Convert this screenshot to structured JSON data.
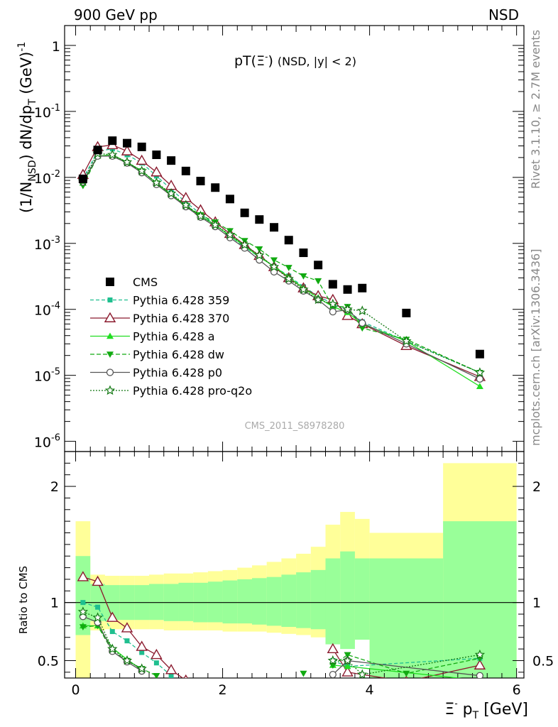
{
  "header": {
    "left": "900 GeV pp",
    "right": "NSD"
  },
  "side": {
    "rivet": "Rivet 3.1.10, ≥ 2.7M events",
    "source": "mcplots.cern.ch [arXiv:1306.3436]"
  },
  "colors": {
    "cms": "#000000",
    "p359": "#1fbf8f",
    "p370": "#8b1a2e",
    "pa": "#22dd22",
    "pdw": "#11aa11",
    "pp0": "#555555",
    "pq2o": "#117711",
    "band_yellow": "#ffff99",
    "band_green": "#99ff99"
  },
  "chart_data": [
    {
      "type": "scatter",
      "title_main": "pT(Ξ",
      "title_sup": "-",
      "title_end": ")",
      "title_cond": "(NSD, |y| < 2)",
      "ylabel": "(1/N",
      "ylabel_sub": "NSD",
      "ylabel_mid": ") dN/dp",
      "ylabel_sub2": "T",
      "ylabel_unit": "(GeV)",
      "ylabel_sup": "-1",
      "ylog": true,
      "ylim": [
        7e-07,
        2
      ],
      "xlim": [
        -0.15,
        6.1
      ],
      "yticks": [
        "10",
        "10",
        "10",
        "10",
        "10",
        "10",
        "1"
      ],
      "ytick_exps": [
        "-6",
        "-5",
        "-4",
        "-3",
        "-2",
        "-1",
        ""
      ],
      "watermark": "CMS_2011_S8978280",
      "legend_placement": "lower-left",
      "series": [
        {
          "name": "CMS",
          "key": "cms",
          "x": [
            0.1,
            0.3,
            0.5,
            0.7,
            0.9,
            1.1,
            1.3,
            1.5,
            1.7,
            1.9,
            2.1,
            2.3,
            2.5,
            2.7,
            2.9,
            3.1,
            3.3,
            3.5,
            3.7,
            3.9,
            4.5,
            5.5
          ],
          "y": [
            0.0095,
            0.026,
            0.036,
            0.033,
            0.029,
            0.022,
            0.018,
            0.0125,
            0.0088,
            0.007,
            0.0047,
            0.0029,
            0.0023,
            0.00175,
            0.00112,
            0.00072,
            0.00047,
            0.00024,
            0.0002,
            0.00021,
            8.8e-05,
            2.1e-05
          ]
        },
        {
          "name": "Pythia 6.428 359",
          "key": "p359",
          "x": [
            0.1,
            0.3,
            0.5,
            0.7,
            0.9,
            1.1,
            1.3,
            1.5,
            1.7,
            1.9,
            2.1,
            2.3,
            2.5,
            2.7,
            2.9,
            3.1,
            3.3,
            3.5,
            3.7,
            3.9,
            4.5,
            5.5
          ],
          "y": [
            0.0095,
            0.025,
            0.027,
            0.022,
            0.0165,
            0.0105,
            0.0066,
            0.0042,
            0.0028,
            0.0019,
            0.0013,
            0.00088,
            0.00062,
            0.00045,
            0.00032,
            0.00022,
            0.00016,
            0.00012,
            9.5e-05,
            6.5e-05,
            3.3e-05,
            1.1e-05
          ]
        },
        {
          "name": "Pythia 6.428 370",
          "key": "p370",
          "x": [
            0.1,
            0.3,
            0.5,
            0.7,
            0.9,
            1.1,
            1.3,
            1.5,
            1.7,
            1.9,
            2.1,
            2.3,
            2.5,
            2.7,
            2.9,
            3.1,
            3.3,
            3.5,
            3.7,
            3.9,
            4.5,
            5.5
          ],
          "y": [
            0.011,
            0.029,
            0.031,
            0.025,
            0.018,
            0.012,
            0.0075,
            0.0049,
            0.0032,
            0.0021,
            0.0014,
            0.00095,
            0.00065,
            0.00044,
            0.0003,
            0.00021,
            0.00016,
            0.00014,
            8e-05,
            6e-05,
            2.8e-05,
            9.5e-06
          ]
        },
        {
          "name": "Pythia 6.428 a",
          "key": "pa",
          "x": [
            0.1,
            0.3,
            0.5,
            0.7,
            0.9,
            1.1,
            1.3,
            1.5,
            1.7,
            1.9,
            2.1,
            2.3,
            2.5,
            2.7,
            2.9,
            3.1,
            3.3,
            3.5,
            3.7,
            3.9,
            4.5,
            5.5
          ],
          "y": [
            0.0082,
            0.021,
            0.022,
            0.017,
            0.0125,
            0.0082,
            0.0055,
            0.0037,
            0.0026,
            0.0019,
            0.0013,
            0.00092,
            0.00062,
            0.00045,
            0.00031,
            0.00021,
            0.00015,
            0.00011,
            9e-05,
            6e-05,
            3.3e-05,
            6.8e-06
          ]
        },
        {
          "name": "Pythia 6.428 dw",
          "key": "pdw",
          "x": [
            0.1,
            0.3,
            0.5,
            0.7,
            0.9,
            1.1,
            1.3,
            1.5,
            1.7,
            1.9,
            2.1,
            2.3,
            2.5,
            2.7,
            2.9,
            3.1,
            3.3,
            3.5,
            3.7,
            3.9,
            4.5,
            5.5
          ],
          "y": [
            0.0075,
            0.021,
            0.021,
            0.0165,
            0.0125,
            0.0082,
            0.0055,
            0.0037,
            0.0027,
            0.0021,
            0.00155,
            0.0011,
            0.00082,
            0.00056,
            0.00043,
            0.00032,
            0.00027,
            0.00011,
            0.00011,
            5.2e-05,
            3.5e-05,
            1.1e-05
          ]
        },
        {
          "name": "Pythia 6.428 p0",
          "key": "pp0",
          "x": [
            0.1,
            0.3,
            0.5,
            0.7,
            0.9,
            1.1,
            1.3,
            1.5,
            1.7,
            1.9,
            2.1,
            2.3,
            2.5,
            2.7,
            2.9,
            3.1,
            3.3,
            3.5,
            3.7,
            3.9,
            4.5,
            5.5
          ],
          "y": [
            0.0085,
            0.021,
            0.021,
            0.0165,
            0.0118,
            0.0078,
            0.0053,
            0.0036,
            0.0025,
            0.0018,
            0.00122,
            0.00085,
            0.00056,
            0.00037,
            0.00027,
            0.00019,
            0.00014,
            9.2e-05,
            9.8e-05,
            6.2e-05,
            3e-05,
            8.8e-06
          ]
        },
        {
          "name": "Pythia 6.428 pro-q2o",
          "key": "pq2o",
          "x": [
            0.1,
            0.3,
            0.5,
            0.7,
            0.9,
            1.1,
            1.3,
            1.5,
            1.7,
            1.9,
            2.1,
            2.3,
            2.5,
            2.7,
            2.9,
            3.1,
            3.3,
            3.5,
            3.7,
            3.9,
            4.5,
            5.5
          ],
          "y": [
            0.0088,
            0.023,
            0.022,
            0.017,
            0.0125,
            0.0083,
            0.0057,
            0.0038,
            0.0026,
            0.0019,
            0.00135,
            0.00095,
            0.00066,
            0.00044,
            0.00029,
            0.0002,
            0.00014,
            0.00012,
            0.0001,
            9.5e-05,
            3.3e-05,
            1.1e-05
          ]
        }
      ]
    },
    {
      "type": "scatter",
      "ylabel": "Ratio to CMS",
      "xlabel_main": "Ξ",
      "xlabel_sup": "-",
      "xlabel_rest": " p",
      "xlabel_sub": "T",
      "xlabel_unit": " [GeV]",
      "xlim": [
        -0.15,
        6.1
      ],
      "ylim": [
        0.35,
        2.3
      ],
      "xticks": [
        "0",
        "2",
        "4",
        "6"
      ],
      "yticks": [
        "0.5",
        "1",
        "2"
      ],
      "bins": [
        [
          0.0,
          0.2
        ],
        [
          0.2,
          0.4
        ],
        [
          0.4,
          0.6
        ],
        [
          0.6,
          0.8
        ],
        [
          0.8,
          1.0
        ],
        [
          1.0,
          1.2
        ],
        [
          1.2,
          1.4
        ],
        [
          1.4,
          1.6
        ],
        [
          1.6,
          1.8
        ],
        [
          1.8,
          2.0
        ],
        [
          2.0,
          2.2
        ],
        [
          2.2,
          2.4
        ],
        [
          2.4,
          2.6
        ],
        [
          2.6,
          2.8
        ],
        [
          2.8,
          3.0
        ],
        [
          3.0,
          3.2
        ],
        [
          3.2,
          3.4
        ],
        [
          3.4,
          3.6
        ],
        [
          3.6,
          3.8
        ],
        [
          3.8,
          4.0
        ],
        [
          4.0,
          5.0
        ],
        [
          5.0,
          6.0
        ]
      ],
      "band_yellow_lo": [
        0.35,
        0.76,
        0.77,
        0.77,
        0.77,
        0.77,
        0.76,
        0.76,
        0.76,
        0.76,
        0.75,
        0.75,
        0.75,
        0.74,
        0.73,
        0.72,
        0.7,
        0.67,
        0.65,
        0.68,
        0.47,
        0.35
      ],
      "band_yellow_hi": [
        1.7,
        1.24,
        1.23,
        1.23,
        1.23,
        1.24,
        1.25,
        1.25,
        1.26,
        1.27,
        1.28,
        1.3,
        1.32,
        1.35,
        1.38,
        1.42,
        1.48,
        1.67,
        1.78,
        1.72,
        1.6,
        2.2
      ],
      "band_green_lo": [
        0.72,
        0.84,
        0.85,
        0.85,
        0.85,
        0.85,
        0.84,
        0.84,
        0.83,
        0.83,
        0.82,
        0.82,
        0.81,
        0.8,
        0.79,
        0.78,
        0.77,
        0.64,
        0.6,
        0.68,
        0.35,
        0.35
      ],
      "band_green_hi": [
        1.4,
        1.16,
        1.15,
        1.15,
        1.15,
        1.16,
        1.16,
        1.17,
        1.17,
        1.18,
        1.19,
        1.2,
        1.21,
        1.22,
        1.24,
        1.26,
        1.28,
        1.38,
        1.44,
        1.38,
        1.38,
        1.7
      ],
      "series": [
        {
          "key": "p359",
          "x": [
            0.1,
            0.3,
            0.5,
            0.7,
            0.9,
            1.1,
            1.3,
            3.5,
            3.7,
            5.5
          ],
          "y": [
            1.0,
            0.96,
            0.75,
            0.67,
            0.57,
            0.48,
            0.37,
            0.5,
            0.45,
            0.52
          ]
        },
        {
          "key": "p370",
          "x": [
            0.1,
            0.3,
            0.5,
            0.7,
            0.9,
            1.1,
            1.3,
            1.5,
            3.5,
            3.7,
            4.5,
            5.5
          ],
          "y": [
            1.22,
            1.18,
            0.87,
            0.78,
            0.62,
            0.55,
            0.42,
            0.33,
            0.6,
            0.4,
            0.32,
            0.46
          ]
        },
        {
          "key": "pa",
          "x": [
            0.1,
            0.3,
            0.5,
            0.7,
            0.9,
            3.5,
            3.7,
            5.5
          ],
          "y": [
            0.8,
            0.8,
            0.61,
            0.51,
            0.42,
            0.46,
            0.45,
            0.33
          ]
        },
        {
          "key": "pdw",
          "x": [
            0.1,
            0.3,
            0.5,
            0.7,
            0.9,
            1.1,
            3.1,
            3.5,
            3.7,
            4.5,
            5.5
          ],
          "y": [
            0.79,
            0.8,
            0.58,
            0.5,
            0.43,
            0.37,
            0.39,
            0.46,
            0.55,
            0.39,
            0.52
          ]
        },
        {
          "key": "pp0",
          "x": [
            0.1,
            0.3,
            0.5,
            0.7,
            0.9,
            3.5,
            3.7,
            5.5
          ],
          "y": [
            0.88,
            0.83,
            0.58,
            0.49,
            0.41,
            0.38,
            0.5,
            0.37
          ]
        },
        {
          "key": "pq2o",
          "x": [
            0.1,
            0.3,
            0.5,
            0.7,
            0.9,
            3.5,
            3.7,
            3.9,
            5.5
          ],
          "y": [
            0.92,
            0.87,
            0.6,
            0.5,
            0.43,
            0.5,
            0.5,
            0.38,
            0.55
          ]
        }
      ]
    }
  ]
}
